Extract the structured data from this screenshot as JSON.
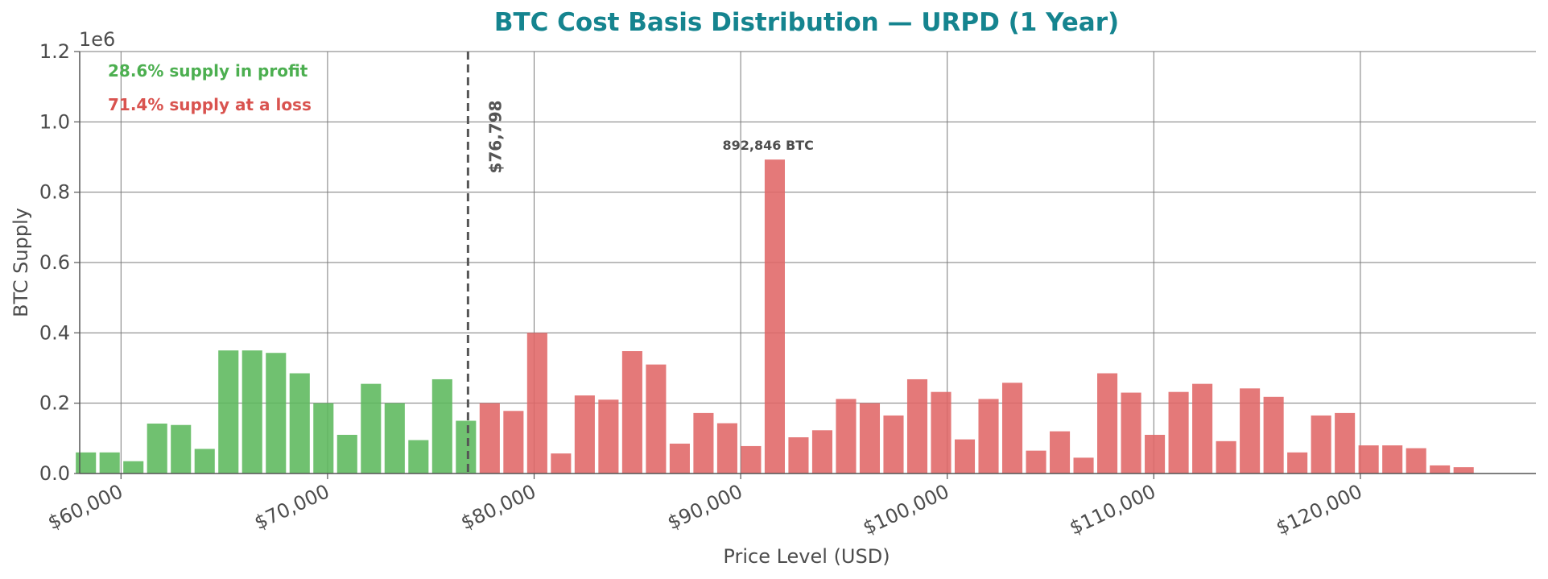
{
  "chart_data": {
    "type": "bar",
    "title": "BTC Cost Basis Distribution — URPD (1 Year)",
    "xlabel": "Price Level (USD)",
    "ylabel": "BTC Supply",
    "y_offset_label": "1e6",
    "xlim": [
      58000,
      128500
    ],
    "ylim": [
      0,
      1200000
    ],
    "x_ticks": [
      60000,
      70000,
      80000,
      90000,
      100000,
      110000,
      120000
    ],
    "x_tick_labels": [
      "$60,000",
      "$70,000",
      "$80,000",
      "$90,000",
      "$100,000",
      "$110,000",
      "$120,000"
    ],
    "y_ticks": [
      0,
      200000,
      400000,
      600000,
      800000,
      1000000,
      1200000
    ],
    "y_tick_labels": [
      "0.0",
      "0.2",
      "0.4",
      "0.6",
      "0.8",
      "1.0",
      "1.2"
    ],
    "grid": true,
    "bin_width": 1150,
    "current_price": 76798,
    "current_price_label": "$76,798",
    "peak_label": "892,846 BTC",
    "peak_x": 91250,
    "profit_label": "28.6% supply in profit",
    "loss_label": "71.4% supply at a loss",
    "colors": {
      "profit": "#5cb85c",
      "loss": "#e06666",
      "title": "#15848f",
      "profit_text": "#4caf50",
      "loss_text": "#d9534f",
      "current_line": "#555555"
    },
    "x": [
      58300,
      59450,
      60600,
      61750,
      62900,
      64050,
      65200,
      66350,
      67500,
      68650,
      69800,
      70950,
      72100,
      73250,
      74400,
      75550,
      76700,
      77850,
      79000,
      80150,
      81300,
      82450,
      83600,
      84750,
      85900,
      87050,
      88200,
      89350,
      90500,
      91650,
      92800,
      93950,
      95100,
      96250,
      97400,
      98550,
      99700,
      100850,
      102000,
      103150,
      104300,
      105450,
      106600,
      107750,
      108900,
      110050,
      111200,
      112350,
      113500,
      114650,
      115800,
      116950,
      118100,
      119250,
      120400,
      121550,
      122700,
      123850,
      125000
    ],
    "values": [
      60000,
      60000,
      35000,
      142000,
      138000,
      70000,
      350000,
      350000,
      343000,
      285000,
      200000,
      110000,
      255000,
      200000,
      95000,
      268000,
      150000,
      200000,
      178000,
      400000,
      57000,
      222000,
      210000,
      348000,
      310000,
      85000,
      172000,
      143000,
      78000,
      892846,
      103000,
      123000,
      212000,
      200000,
      165000,
      268000,
      232000,
      97000,
      212000,
      258000,
      65000,
      120000,
      45000,
      285000,
      230000,
      110000,
      232000,
      255000,
      92000,
      242000,
      218000,
      60000,
      165000,
      172000,
      80000,
      80000,
      72000,
      23000,
      18000
    ],
    "in_profit": [
      true,
      true,
      true,
      true,
      true,
      true,
      true,
      true,
      true,
      true,
      true,
      true,
      true,
      true,
      true,
      true,
      true,
      false,
      false,
      false,
      false,
      false,
      false,
      false,
      false,
      false,
      false,
      false,
      false,
      false,
      false,
      false,
      false,
      false,
      false,
      false,
      false,
      false,
      false,
      false,
      false,
      false,
      false,
      false,
      false,
      false,
      false,
      false,
      false,
      false,
      false,
      false,
      false,
      false,
      false,
      false,
      false,
      false,
      false
    ]
  }
}
